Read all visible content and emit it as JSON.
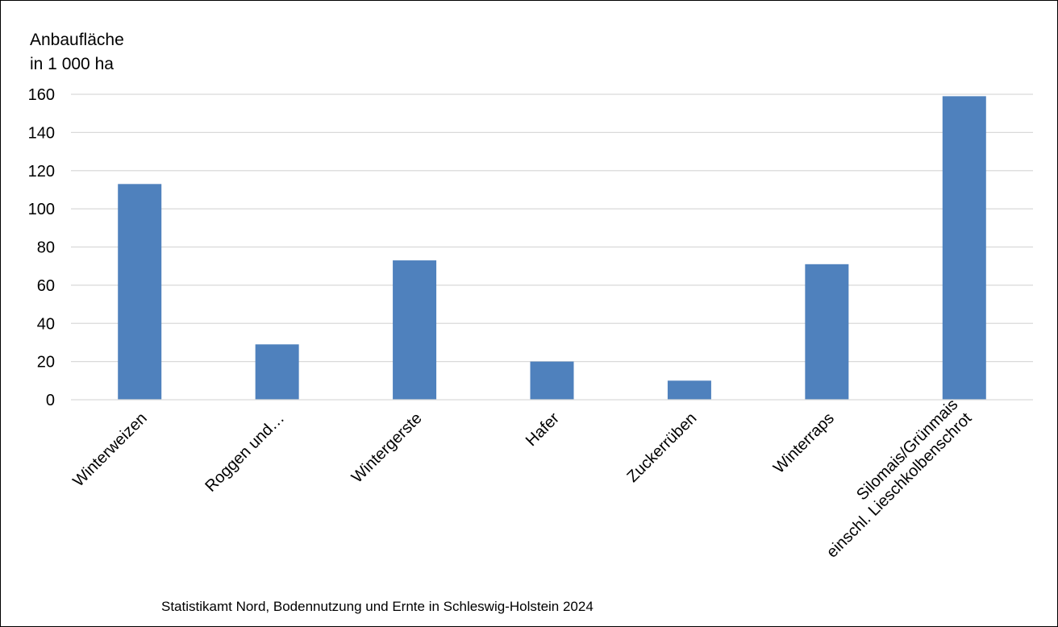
{
  "chart_data": {
    "type": "bar",
    "ylabel": [
      "Anbaufläche",
      "in 1 000 ha"
    ],
    "categories": [
      [
        "Winterweizen"
      ],
      [
        "Roggen und…"
      ],
      [
        "Wintergerste"
      ],
      [
        "Hafer"
      ],
      [
        "Zuckerrüben"
      ],
      [
        "Winterraps"
      ],
      [
        "Silomais/Grünmais",
        "einschl. Lieschkolbenschrot"
      ]
    ],
    "values": [
      113,
      29,
      73,
      20,
      10,
      71,
      159
    ],
    "ylim": [
      0,
      160
    ],
    "yticks": [
      0,
      20,
      40,
      60,
      80,
      100,
      120,
      140,
      160
    ],
    "grid": true,
    "bar_color": "#4F81BD",
    "grid_color": "#D9D9D9",
    "source": "Statistikamt Nord, Bodennutzung und Ernte in Schleswig-Holstein 2024"
  }
}
